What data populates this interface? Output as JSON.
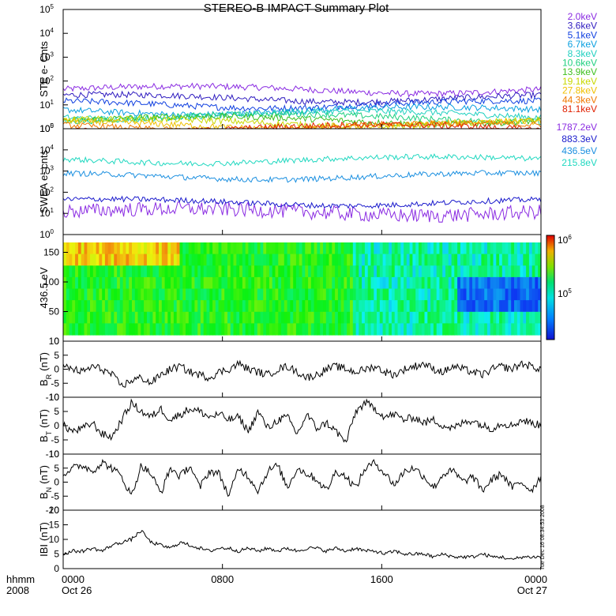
{
  "title": "STEREO-B IMPACT Summary Plot",
  "time_axis": {
    "corner_label_top": "hhmm",
    "corner_label_bottom": "2008",
    "ticks": [
      {
        "hhmm": "0000",
        "day": "Oct 26",
        "hours": 0
      },
      {
        "hhmm": "0800",
        "day": "",
        "hours": 8
      },
      {
        "hhmm": "1600",
        "day": "",
        "hours": 16
      },
      {
        "hhmm": "0000",
        "day": "Oct 27",
        "hours": 24
      }
    ]
  },
  "side_text": "Tue Dec 16 08:34:53 2008",
  "colorbar": {
    "top_label": "10",
    "top_exp": "6",
    "mid_label": "10",
    "mid_exp": "5"
  },
  "chart_data": [
    {
      "type": "line",
      "ylabel": "STE e- Cnts",
      "yscale": "log",
      "ylim": [
        1,
        100000
      ],
      "yticks": [
        {
          "base": "10",
          "exp": "0"
        },
        {
          "base": "10",
          "exp": "1"
        },
        {
          "base": "10",
          "exp": "2"
        },
        {
          "base": "10",
          "exp": "3"
        },
        {
          "base": "10",
          "exp": "4"
        },
        {
          "base": "10",
          "exp": "5"
        }
      ],
      "series": [
        {
          "name": "2.0keV",
          "color": "#8a2be2",
          "level": 45
        },
        {
          "name": "3.6keV",
          "color": "#2e1bbf",
          "level": 20
        },
        {
          "name": "5.1keV",
          "color": "#1040e0",
          "level": 11
        },
        {
          "name": "6.7keV",
          "color": "#0aa0e0",
          "level": 6
        },
        {
          "name": "8.3keV",
          "color": "#20d0c0",
          "level": 4
        },
        {
          "name": "10.6keV",
          "color": "#20d080",
          "level": 3
        },
        {
          "name": "13.9keV",
          "color": "#40c020",
          "level": 2.4
        },
        {
          "name": "19.1keV",
          "color": "#c8d800",
          "level": 1.9
        },
        {
          "name": "27.8keV",
          "color": "#f0c000",
          "level": 1.5
        },
        {
          "name": "44.3keV",
          "color": "#f07800",
          "level": 1.25
        },
        {
          "name": "81.1keV",
          "color": "#e02000",
          "level": 1.1
        }
      ]
    },
    {
      "type": "line",
      "ylabel": "SWEA e- cnts",
      "yscale": "log",
      "ylim": [
        1,
        100000
      ],
      "yticks": [
        {
          "base": "10",
          "exp": "0"
        },
        {
          "base": "10",
          "exp": "1"
        },
        {
          "base": "10",
          "exp": "2"
        },
        {
          "base": "10",
          "exp": "3"
        },
        {
          "base": "10",
          "exp": "4"
        },
        {
          "base": "10",
          "exp": "5"
        }
      ],
      "series": [
        {
          "name": "1787.2eV",
          "color": "#8a2be2",
          "level": 12
        },
        {
          "name": "883.3eV",
          "color": "#1a1acc",
          "level": 35
        },
        {
          "name": "436.5eV",
          "color": "#1a8fe0",
          "level": 600
        },
        {
          "name": "215.8eV",
          "color": "#20d8c0",
          "level": 3500
        }
      ]
    },
    {
      "type": "heatmap",
      "ylabel": "436.5 eV",
      "ylim": [
        0,
        180
      ],
      "yticks": [
        "0",
        "50",
        "100",
        "150"
      ],
      "color_scale": "log"
    },
    {
      "type": "line",
      "ylabel": "B",
      "ylabel_sub": "R",
      "ylabel_unit": "(nT)",
      "ylim": [
        -10,
        10
      ],
      "yticks": [
        "-10",
        "-5",
        "0",
        "5",
        "10"
      ],
      "values": [
        1,
        0,
        -1,
        1,
        0,
        -2,
        -6,
        -4,
        -3,
        -5,
        -2,
        0,
        1,
        -1,
        -2,
        -3,
        -1,
        0,
        2,
        0,
        -1,
        -2,
        0,
        1,
        -1,
        -3,
        -2,
        0,
        1,
        0,
        -1,
        0,
        1,
        -1,
        -2,
        0,
        1,
        2,
        0,
        -1,
        1,
        0,
        -1,
        -2,
        0,
        1,
        0,
        2,
        1,
        0
      ]
    },
    {
      "type": "line",
      "ylabel": "B",
      "ylabel_sub": "T",
      "ylabel_unit": "(nT)",
      "ylim": [
        -10,
        10
      ],
      "yticks": [
        "-10",
        "-5",
        "0",
        "5",
        "10"
      ],
      "values": [
        0,
        -2,
        -1,
        1,
        -3,
        -4,
        2,
        8,
        5,
        3,
        6,
        2,
        4,
        6,
        5,
        3,
        4,
        2,
        3,
        -2,
        5,
        -1,
        2,
        3,
        -3,
        4,
        -1,
        1,
        -2,
        -6,
        5,
        8,
        6,
        3,
        4,
        2,
        3,
        1,
        2,
        0,
        -1,
        1,
        2,
        0,
        -1,
        1,
        0,
        2,
        1,
        0
      ]
    },
    {
      "type": "line",
      "ylabel": "B",
      "ylabel_sub": "N",
      "ylabel_unit": "(nT)",
      "ylim": [
        -10,
        10
      ],
      "yticks": [
        "-10",
        "-5",
        "0",
        "5",
        "10"
      ],
      "values": [
        3,
        5,
        6,
        4,
        7,
        5,
        2,
        -5,
        6,
        3,
        -4,
        5,
        2,
        6,
        -2,
        4,
        3,
        -5,
        5,
        2,
        -3,
        4,
        6,
        -2,
        5,
        3,
        1,
        -3,
        4,
        2,
        -2,
        5,
        7,
        3,
        -1,
        4,
        5,
        2,
        -2,
        3,
        4,
        0,
        2,
        -3,
        1,
        3,
        -2,
        0,
        -3,
        2
      ]
    },
    {
      "type": "line",
      "ylabel": "IBI",
      "ylabel_unit": "(nT)",
      "ylim": [
        0,
        20
      ],
      "yticks": [
        "0",
        "5",
        "10",
        "15",
        "20"
      ],
      "values": [
        5,
        6,
        6,
        7,
        6,
        8,
        9,
        10,
        13,
        9,
        8,
        7,
        9,
        8,
        7,
        6,
        7,
        7,
        6,
        7,
        6,
        7,
        6,
        7,
        6,
        7,
        7,
        6,
        7,
        6,
        7,
        6,
        6,
        5,
        6,
        5,
        5,
        5,
        4,
        5,
        4,
        4,
        4,
        5,
        4,
        4,
        3,
        4,
        4,
        4
      ]
    }
  ]
}
